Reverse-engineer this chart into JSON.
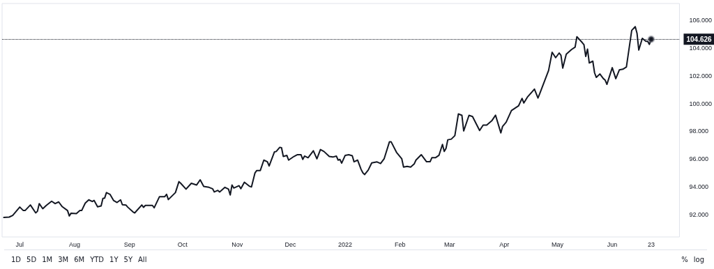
{
  "chart_data": {
    "type": "line",
    "xlim": [
      "2021-06-21",
      "2022-07-09"
    ],
    "ylim": [
      90.4,
      107.2
    ],
    "xticks": [
      {
        "value": "2021-07-01",
        "label": "Jul"
      },
      {
        "value": "2021-08-01",
        "label": "Aug"
      },
      {
        "value": "2021-09-01",
        "label": "Sep"
      },
      {
        "value": "2021-10-01",
        "label": "Oct"
      },
      {
        "value": "2021-11-01",
        "label": "Nov"
      },
      {
        "value": "2021-12-01",
        "label": "Dec"
      },
      {
        "value": "2022-01-01",
        "label": "2022"
      },
      {
        "value": "2022-02-01",
        "label": "Feb"
      },
      {
        "value": "2022-03-01",
        "label": "Mar"
      },
      {
        "value": "2022-04-01",
        "label": "Apr"
      },
      {
        "value": "2022-05-01",
        "label": "May"
      },
      {
        "value": "2022-06-01",
        "label": "Jun"
      },
      {
        "value": "2022-06-23",
        "label": "23"
      }
    ],
    "yticks": [
      {
        "value": 92,
        "label": "92.000"
      },
      {
        "value": 94,
        "label": "94.000"
      },
      {
        "value": 96,
        "label": "96.000"
      },
      {
        "value": 98,
        "label": "98.000"
      },
      {
        "value": 100,
        "label": "100.000"
      },
      {
        "value": 102,
        "label": "102.000"
      },
      {
        "value": 104,
        "label": "104.000"
      },
      {
        "value": 106,
        "label": "106.000"
      }
    ],
    "grid": false,
    "marker": "none",
    "line_style": "solid",
    "ref_lines": [
      {
        "axis": "y",
        "value": 104.626,
        "label": "104.626",
        "line_style": "dotted",
        "color": "#131722"
      }
    ],
    "annotations": [
      "1D",
      "5D",
      "1M",
      "3M",
      "6M",
      "YTD",
      "1Y",
      "5Y",
      "All",
      "%",
      "log"
    ],
    "series": [
      {
        "color": "#131722",
        "x": [
          "2021-06-22",
          "2021-06-25",
          "2021-06-27",
          "2021-07-01",
          "2021-07-03",
          "2021-07-04",
          "2021-07-07",
          "2021-07-10",
          "2021-07-11",
          "2021-07-12",
          "2021-07-14",
          "2021-07-16",
          "2021-07-19",
          "2021-07-21",
          "2021-07-23",
          "2021-07-25",
          "2021-07-28",
          "2021-07-29",
          "2021-07-30",
          "2021-08-02",
          "2021-08-04",
          "2021-08-05",
          "2021-08-07",
          "2021-08-09",
          "2021-08-11",
          "2021-08-12",
          "2021-08-14",
          "2021-08-16",
          "2021-08-17",
          "2021-08-18",
          "2021-08-19",
          "2021-08-21",
          "2021-08-23",
          "2021-08-25",
          "2021-08-27",
          "2021-08-28",
          "2021-08-30",
          "2021-08-31",
          "2021-09-03",
          "2021-09-04",
          "2021-09-08",
          "2021-09-09",
          "2021-09-10",
          "2021-09-14",
          "2021-09-15",
          "2021-09-18",
          "2021-09-21",
          "2021-09-22",
          "2021-09-23",
          "2021-09-25",
          "2021-09-27",
          "2021-09-29",
          "2021-09-30",
          "2021-10-03",
          "2021-10-06",
          "2021-10-09",
          "2021-10-11",
          "2021-10-13",
          "2021-10-16",
          "2021-10-18",
          "2021-10-19",
          "2021-10-21",
          "2021-10-22",
          "2021-10-25",
          "2021-10-27",
          "2021-10-28",
          "2021-10-29",
          "2021-10-30",
          "2021-11-02",
          "2021-11-03",
          "2021-11-05",
          "2021-11-08",
          "2021-11-09",
          "2021-11-11",
          "2021-11-12",
          "2021-11-14",
          "2021-11-16",
          "2021-11-18",
          "2021-11-19",
          "2021-11-22",
          "2021-11-23",
          "2021-11-25",
          "2021-11-26",
          "2021-11-27",
          "2021-11-29",
          "2021-11-30",
          "2021-12-03",
          "2021-12-05",
          "2021-12-07",
          "2021-12-08",
          "2021-12-09",
          "2021-12-11",
          "2021-12-14",
          "2021-12-16",
          "2021-12-18",
          "2021-12-20",
          "2021-12-23",
          "2021-12-25",
          "2021-12-27",
          "2021-12-28",
          "2021-12-29",
          "2021-12-30",
          "2022-01-01",
          "2022-01-03",
          "2022-01-05",
          "2022-01-06",
          "2022-01-08",
          "2022-01-10",
          "2022-01-11",
          "2022-01-12",
          "2022-01-14",
          "2022-01-16",
          "2022-01-19",
          "2022-01-21",
          "2022-01-23",
          "2022-01-26",
          "2022-01-27",
          "2022-01-30",
          "2022-02-02",
          "2022-02-03",
          "2022-02-05",
          "2022-02-07",
          "2022-02-09",
          "2022-02-10",
          "2022-02-13",
          "2022-02-16",
          "2022-02-18",
          "2022-02-19",
          "2022-02-21",
          "2022-02-23",
          "2022-02-25",
          "2022-02-26",
          "2022-02-27",
          "2022-02-28",
          "2022-03-02",
          "2022-03-04",
          "2022-03-06",
          "2022-03-08",
          "2022-03-09",
          "2022-03-12",
          "2022-03-14",
          "2022-03-18",
          "2022-03-20",
          "2022-03-22",
          "2022-03-25",
          "2022-03-27",
          "2022-03-30",
          "2022-03-31",
          "2022-04-02",
          "2022-04-05",
          "2022-04-09",
          "2022-04-11",
          "2022-04-12",
          "2022-04-14",
          "2022-04-18",
          "2022-04-20",
          "2022-04-21",
          "2022-04-26",
          "2022-04-28",
          "2022-04-30",
          "2022-05-02",
          "2022-05-03",
          "2022-05-04",
          "2022-05-06",
          "2022-05-09",
          "2022-05-11",
          "2022-05-12",
          "2022-05-15",
          "2022-05-16",
          "2022-05-17",
          "2022-05-18",
          "2022-05-19",
          "2022-05-21",
          "2022-05-22",
          "2022-05-23",
          "2022-05-25",
          "2022-05-27",
          "2022-05-28",
          "2022-05-29",
          "2022-05-30",
          "2022-06-01",
          "2022-06-03",
          "2022-06-05",
          "2022-06-07",
          "2022-06-09",
          "2022-06-12",
          "2022-06-14",
          "2022-06-15",
          "2022-06-16",
          "2022-06-18",
          "2022-06-20",
          "2022-06-21",
          "2022-06-22",
          "2022-06-23"
        ],
        "values": [
          91.8,
          91.83,
          91.95,
          92.55,
          92.3,
          92.3,
          92.7,
          92.13,
          92.25,
          92.8,
          92.43,
          92.67,
          92.97,
          92.8,
          92.92,
          92.58,
          92.3,
          91.91,
          92.11,
          92.08,
          92.3,
          92.3,
          92.83,
          93.07,
          92.95,
          93.03,
          92.57,
          92.63,
          93.17,
          93.2,
          93.59,
          93.47,
          93.03,
          92.88,
          93.07,
          92.72,
          92.7,
          92.55,
          92.2,
          92.13,
          92.7,
          92.53,
          92.67,
          92.67,
          92.5,
          93.3,
          93.3,
          93.47,
          93.09,
          93.34,
          93.59,
          94.38,
          94.26,
          93.84,
          94.26,
          94.14,
          94.51,
          94.04,
          93.97,
          93.87,
          93.64,
          93.75,
          93.64,
          93.97,
          93.84,
          93.42,
          94.14,
          93.92,
          94.09,
          93.87,
          94.34,
          94.04,
          94.0,
          95.01,
          95.18,
          95.18,
          95.93,
          95.81,
          95.51,
          96.52,
          96.55,
          96.85,
          96.82,
          96.19,
          96.27,
          95.93,
          96.19,
          96.32,
          96.32,
          95.98,
          96.22,
          96.1,
          96.6,
          96.02,
          96.69,
          96.55,
          96.19,
          96.15,
          96.22,
          95.93,
          95.98,
          95.71,
          96.27,
          96.32,
          96.24,
          95.81,
          95.93,
          95.26,
          95.01,
          94.89,
          95.21,
          95.73,
          95.8,
          95.68,
          96.02,
          97.24,
          97.24,
          96.49,
          96.02,
          95.43,
          95.48,
          95.43,
          95.65,
          95.93,
          96.32,
          95.81,
          95.81,
          96.1,
          96.1,
          96.27,
          97.06,
          96.55,
          96.77,
          97.39,
          97.44,
          97.69,
          99.25,
          99.15,
          98.03,
          99.15,
          99.06,
          98.06,
          98.45,
          98.45,
          98.78,
          99.16,
          97.89,
          98.36,
          98.66,
          99.5,
          99.83,
          100.37,
          100.04,
          100.46,
          101.04,
          100.4,
          100.71,
          102.38,
          103.69,
          103.3,
          103.64,
          103.47,
          102.55,
          103.55,
          103.89,
          104.06,
          104.81,
          104.39,
          104.23,
          103.39,
          103.92,
          102.92,
          103.05,
          102.21,
          101.88,
          102.13,
          101.79,
          101.68,
          101.38,
          101.79,
          102.58,
          101.79,
          102.42,
          102.47,
          102.63,
          105.26,
          105.53,
          105.06,
          103.85,
          104.69,
          104.48,
          104.48,
          104.26,
          104.626
        ]
      }
    ]
  }
}
